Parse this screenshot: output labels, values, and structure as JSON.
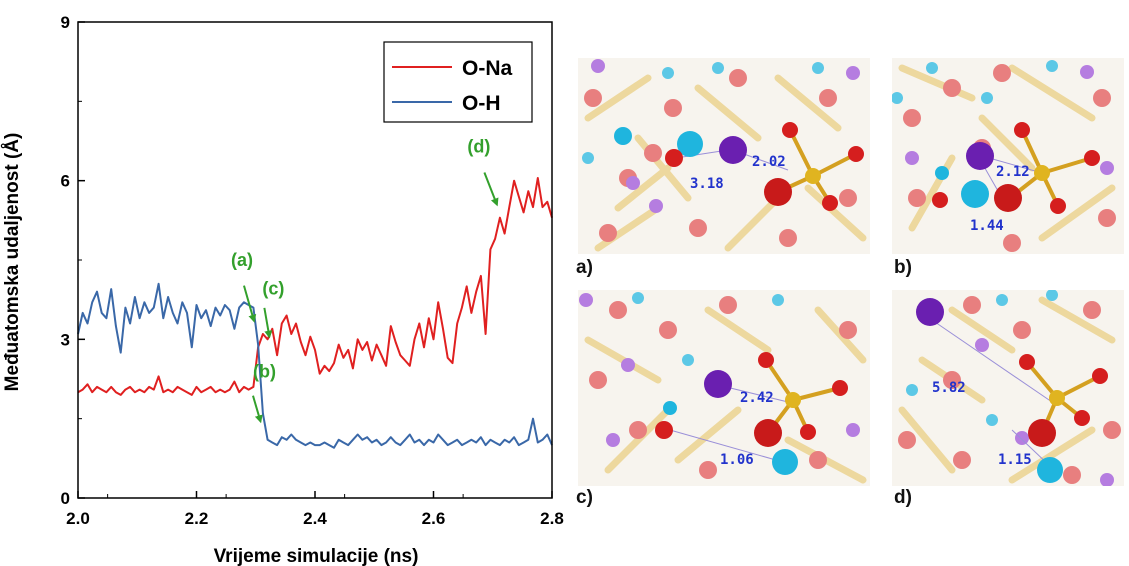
{
  "chart_data": {
    "type": "line",
    "xlabel": "Vrijeme simulacije (ns)",
    "ylabel": "Međuatomska udaljenost (Å)",
    "xlim": [
      2.0,
      2.8
    ],
    "ylim": [
      0,
      9
    ],
    "xticks": [
      "2.0",
      "2.2",
      "2.4",
      "2.6",
      "2.8"
    ],
    "yticks": [
      "0",
      "3",
      "6",
      "9"
    ],
    "legend_position": "top-right",
    "series": [
      {
        "name": "O-Na",
        "color": "#e02020",
        "x": [
          2.0,
          2.008,
          2.016,
          2.024,
          2.032,
          2.04,
          2.048,
          2.056,
          2.064,
          2.072,
          2.08,
          2.088,
          2.096,
          2.104,
          2.112,
          2.12,
          2.128,
          2.136,
          2.144,
          2.152,
          2.16,
          2.168,
          2.176,
          2.184,
          2.192,
          2.2,
          2.208,
          2.216,
          2.224,
          2.232,
          2.24,
          2.248,
          2.256,
          2.264,
          2.272,
          2.28,
          2.288,
          2.296,
          2.304,
          2.312,
          2.32,
          2.328,
          2.336,
          2.344,
          2.352,
          2.36,
          2.368,
          2.376,
          2.384,
          2.392,
          2.4,
          2.408,
          2.416,
          2.424,
          2.432,
          2.44,
          2.448,
          2.456,
          2.464,
          2.472,
          2.48,
          2.488,
          2.496,
          2.504,
          2.512,
          2.52,
          2.528,
          2.536,
          2.544,
          2.552,
          2.56,
          2.568,
          2.576,
          2.584,
          2.592,
          2.6,
          2.608,
          2.616,
          2.624,
          2.632,
          2.64,
          2.648,
          2.656,
          2.664,
          2.672,
          2.68,
          2.688,
          2.696,
          2.704,
          2.712,
          2.72,
          2.728,
          2.736,
          2.744,
          2.752,
          2.76,
          2.768,
          2.776,
          2.784,
          2.792,
          2.8
        ],
        "values": [
          2.0,
          2.05,
          2.15,
          2.0,
          2.1,
          2.05,
          2.0,
          2.1,
          2.0,
          1.95,
          2.05,
          2.1,
          2.0,
          2.05,
          2.0,
          2.1,
          2.05,
          2.3,
          2.0,
          2.05,
          2.0,
          2.1,
          2.05,
          2.0,
          1.95,
          2.1,
          2.0,
          2.05,
          2.1,
          2.0,
          2.05,
          2.0,
          2.05,
          2.2,
          2.0,
          2.1,
          2.05,
          2.1,
          2.85,
          3.1,
          3.0,
          3.2,
          2.7,
          3.3,
          3.45,
          3.1,
          3.3,
          2.95,
          2.7,
          3.05,
          2.8,
          2.35,
          2.5,
          2.4,
          2.55,
          2.9,
          2.65,
          2.8,
          2.45,
          3.0,
          2.8,
          2.95,
          2.6,
          2.9,
          2.7,
          2.5,
          3.25,
          2.95,
          2.7,
          2.6,
          2.5,
          3.0,
          3.3,
          2.85,
          3.4,
          3.0,
          3.7,
          3.2,
          2.65,
          2.55,
          3.3,
          3.6,
          4.0,
          3.5,
          3.9,
          4.2,
          3.1,
          4.7,
          4.9,
          5.3,
          5.0,
          5.5,
          6.0,
          5.7,
          5.4,
          5.8,
          5.5,
          6.05,
          5.5,
          5.6,
          5.3
        ]
      },
      {
        "name": "O-H",
        "color": "#3a68a8",
        "x": [
          2.0,
          2.008,
          2.016,
          2.024,
          2.032,
          2.04,
          2.048,
          2.056,
          2.064,
          2.072,
          2.08,
          2.088,
          2.096,
          2.104,
          2.112,
          2.12,
          2.128,
          2.136,
          2.144,
          2.152,
          2.16,
          2.168,
          2.176,
          2.184,
          2.192,
          2.2,
          2.208,
          2.216,
          2.224,
          2.232,
          2.24,
          2.248,
          2.256,
          2.264,
          2.272,
          2.28,
          2.288,
          2.296,
          2.304,
          2.312,
          2.32,
          2.328,
          2.336,
          2.344,
          2.352,
          2.36,
          2.368,
          2.376,
          2.384,
          2.392,
          2.4,
          2.408,
          2.416,
          2.424,
          2.432,
          2.44,
          2.448,
          2.456,
          2.464,
          2.472,
          2.48,
          2.488,
          2.496,
          2.504,
          2.512,
          2.52,
          2.528,
          2.536,
          2.544,
          2.552,
          2.56,
          2.568,
          2.576,
          2.584,
          2.592,
          2.6,
          2.608,
          2.616,
          2.624,
          2.632,
          2.64,
          2.648,
          2.656,
          2.664,
          2.672,
          2.68,
          2.688,
          2.696,
          2.704,
          2.712,
          2.72,
          2.728,
          2.736,
          2.744,
          2.752,
          2.76,
          2.768,
          2.776,
          2.784,
          2.792,
          2.8
        ],
        "values": [
          3.1,
          3.5,
          3.3,
          3.7,
          3.9,
          3.5,
          3.4,
          3.95,
          3.25,
          2.75,
          3.6,
          3.3,
          3.8,
          3.4,
          3.7,
          3.5,
          3.6,
          4.05,
          3.4,
          3.8,
          3.5,
          3.3,
          3.7,
          3.5,
          2.85,
          3.65,
          3.4,
          3.55,
          3.25,
          3.6,
          3.45,
          3.65,
          3.55,
          3.2,
          3.6,
          3.7,
          3.65,
          3.6,
          2.9,
          1.6,
          1.1,
          1.05,
          1.0,
          1.15,
          1.1,
          1.2,
          1.1,
          1.05,
          1.0,
          1.05,
          1.0,
          1.0,
          1.05,
          1.0,
          0.95,
          1.1,
          1.05,
          1.0,
          1.1,
          1.2,
          1.1,
          1.15,
          1.05,
          1.1,
          1.0,
          1.05,
          1.15,
          1.05,
          1.0,
          1.1,
          1.2,
          1.05,
          1.1,
          1.0,
          1.1,
          1.05,
          1.2,
          1.1,
          1.0,
          1.05,
          1.1,
          1.0,
          1.05,
          1.1,
          1.05,
          1.15,
          1.0,
          1.1,
          1.05,
          1.0,
          1.1,
          1.05,
          1.15,
          1.0,
          1.05,
          1.1,
          1.5,
          1.05,
          1.1,
          1.2,
          1.0
        ]
      }
    ],
    "annotations": [
      {
        "label": "(a)",
        "x": 2.297,
        "y": 3.35,
        "color": "#33a02c"
      },
      {
        "label": "(c)",
        "x": 2.323,
        "y": 3.05,
        "color": "#33a02c"
      },
      {
        "label": "(b)",
        "x": 2.308,
        "y": 1.45,
        "color": "#33a02c"
      },
      {
        "label": "(d)",
        "x": 2.707,
        "y": 5.55,
        "color": "#33a02c"
      }
    ]
  },
  "panels": [
    {
      "label": "a)",
      "distances": [
        "3.18",
        "2.02"
      ]
    },
    {
      "label": "b)",
      "distances": [
        "2.12",
        "1.44"
      ]
    },
    {
      "label": "c)",
      "distances": [
        "2.42",
        "1.06"
      ]
    },
    {
      "label": "d)",
      "distances": [
        "5.82",
        "1.15"
      ]
    }
  ]
}
